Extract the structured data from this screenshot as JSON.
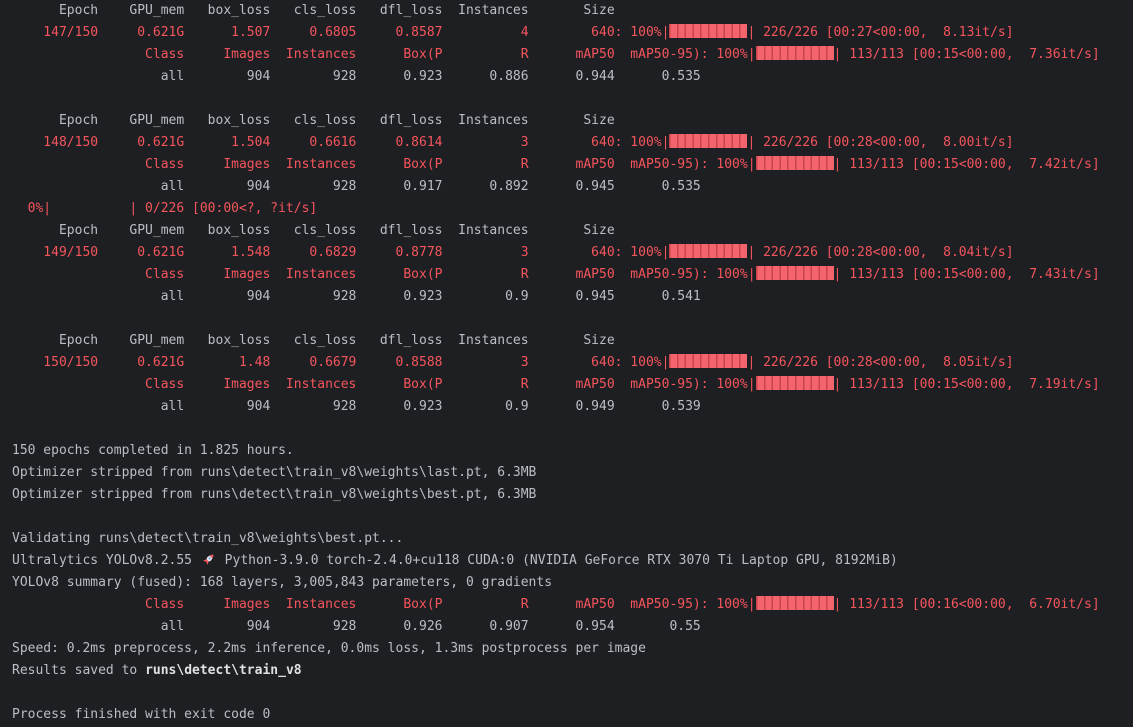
{
  "terminal": {
    "colors": {
      "background": "#1e1f22",
      "foreground": "#bcbec4",
      "stderr_red": "#f5555d",
      "bold_text": "#dfe1e5",
      "progress_bar_fill": "#f4646c",
      "progress_bar_stripe": "#c9444c"
    },
    "status_line": "Process finished with exit code 0",
    "lines": [
      {
        "segments": [
          {
            "text": "      Epoch    GPU_mem   box_loss   cls_loss   dfl_loss  Instances       Size",
            "color": "fg"
          }
        ]
      },
      {
        "segments": [
          {
            "text": "    147/150     0.621G      1.507     0.6805     0.8587          4        640: 100%|",
            "color": "red"
          },
          {
            "bar": true
          },
          {
            "text": "| 226/226 [00:27<00:00,  8.13it/s]",
            "color": "red"
          }
        ]
      },
      {
        "segments": [
          {
            "text": "                 Class     Images  Instances      Box(P          R      mAP50  mAP50-95): 100%|",
            "color": "red"
          },
          {
            "bar": true
          },
          {
            "text": "| 113/113 [00:15<00:00,  7.36it/s]",
            "color": "red"
          }
        ]
      },
      {
        "segments": [
          {
            "text": "                   all        904        928      0.923      0.886      0.944      0.535",
            "color": "fg"
          }
        ]
      },
      {
        "segments": []
      },
      {
        "segments": [
          {
            "text": "      Epoch    GPU_mem   box_loss   cls_loss   dfl_loss  Instances       Size",
            "color": "fg"
          }
        ]
      },
      {
        "segments": [
          {
            "text": "    148/150     0.621G      1.504     0.6616     0.8614          3        640: 100%|",
            "color": "red"
          },
          {
            "bar": true
          },
          {
            "text": "| 226/226 [00:28<00:00,  8.00it/s]",
            "color": "red"
          }
        ]
      },
      {
        "segments": [
          {
            "text": "                 Class     Images  Instances      Box(P          R      mAP50  mAP50-95): 100%|",
            "color": "red"
          },
          {
            "bar": true
          },
          {
            "text": "| 113/113 [00:15<00:00,  7.42it/s]",
            "color": "red"
          }
        ]
      },
      {
        "segments": [
          {
            "text": "                   all        904        928      0.917      0.892      0.945      0.535",
            "color": "fg"
          }
        ]
      },
      {
        "segments": [
          {
            "text": "  0%|          | 0/226 [00:00<?, ?it/s]",
            "color": "red"
          }
        ]
      },
      {
        "segments": [
          {
            "text": "      Epoch    GPU_mem   box_loss   cls_loss   dfl_loss  Instances       Size",
            "color": "fg"
          }
        ]
      },
      {
        "segments": [
          {
            "text": "    149/150     0.621G      1.548     0.6829     0.8778          3        640: 100%|",
            "color": "red"
          },
          {
            "bar": true
          },
          {
            "text": "| 226/226 [00:28<00:00,  8.04it/s]",
            "color": "red"
          }
        ]
      },
      {
        "segments": [
          {
            "text": "                 Class     Images  Instances      Box(P          R      mAP50  mAP50-95): 100%|",
            "color": "red"
          },
          {
            "bar": true
          },
          {
            "text": "| 113/113 [00:15<00:00,  7.43it/s]",
            "color": "red"
          }
        ]
      },
      {
        "segments": [
          {
            "text": "                   all        904        928      0.923        0.9      0.945      0.541",
            "color": "fg"
          }
        ]
      },
      {
        "segments": []
      },
      {
        "segments": [
          {
            "text": "      Epoch    GPU_mem   box_loss   cls_loss   dfl_loss  Instances       Size",
            "color": "fg"
          }
        ]
      },
      {
        "segments": [
          {
            "text": "    150/150     0.621G       1.48     0.6679     0.8588          3        640: 100%|",
            "color": "red"
          },
          {
            "bar": true
          },
          {
            "text": "| 226/226 [00:28<00:00,  8.05it/s]",
            "color": "red"
          }
        ]
      },
      {
        "segments": [
          {
            "text": "                 Class     Images  Instances      Box(P          R      mAP50  mAP50-95): 100%|",
            "color": "red"
          },
          {
            "bar": true
          },
          {
            "text": "| 113/113 [00:15<00:00,  7.19it/s]",
            "color": "red"
          }
        ]
      },
      {
        "segments": [
          {
            "text": "                   all        904        928      0.923        0.9      0.949      0.539",
            "color": "fg"
          }
        ]
      },
      {
        "segments": []
      },
      {
        "segments": [
          {
            "text": "150 epochs completed in 1.825 hours.",
            "color": "fg"
          }
        ]
      },
      {
        "segments": [
          {
            "text": "Optimizer stripped from runs\\detect\\train_v8\\weights\\last.pt, 6.3MB",
            "color": "fg"
          }
        ]
      },
      {
        "segments": [
          {
            "text": "Optimizer stripped from runs\\detect\\train_v8\\weights\\best.pt, 6.3MB",
            "color": "fg"
          }
        ]
      },
      {
        "segments": []
      },
      {
        "segments": [
          {
            "text": "Validating runs\\detect\\train_v8\\weights\\best.pt...",
            "color": "fg"
          }
        ]
      },
      {
        "segments": [
          {
            "text": "Ultralytics YOLOv8.2.55 ",
            "color": "fg"
          },
          {
            "icon": "rocket"
          },
          {
            "text": " Python-3.9.0 torch-2.4.0+cu118 CUDA:0 (NVIDIA GeForce RTX 3070 Ti Laptop GPU, 8192MiB)",
            "color": "fg"
          }
        ]
      },
      {
        "segments": [
          {
            "text": "YOLOv8 summary (fused): 168 layers, 3,005,843 parameters, 0 gradients",
            "color": "fg"
          }
        ]
      },
      {
        "segments": [
          {
            "text": "                 Class     Images  Instances      Box(P          R      mAP50  mAP50-95): 100%|",
            "color": "red"
          },
          {
            "bar": true
          },
          {
            "text": "| 113/113 [00:16<00:00,  6.70it/s]",
            "color": "red"
          }
        ]
      },
      {
        "segments": [
          {
            "text": "                   all        904        928      0.926      0.907      0.954       0.55",
            "color": "fg"
          }
        ]
      },
      {
        "segments": [
          {
            "text": "Speed: 0.2ms preprocess, 2.2ms inference, 0.0ms loss, 1.3ms postprocess per image",
            "color": "fg"
          }
        ]
      },
      {
        "segments": [
          {
            "text": "Results saved to ",
            "color": "fg"
          },
          {
            "text": "runs\\detect\\train_v8",
            "color": "bold"
          }
        ]
      },
      {
        "segments": []
      },
      {
        "segments": [
          {
            "text": "Process finished with exit code 0",
            "color": "fg"
          }
        ]
      }
    ]
  }
}
